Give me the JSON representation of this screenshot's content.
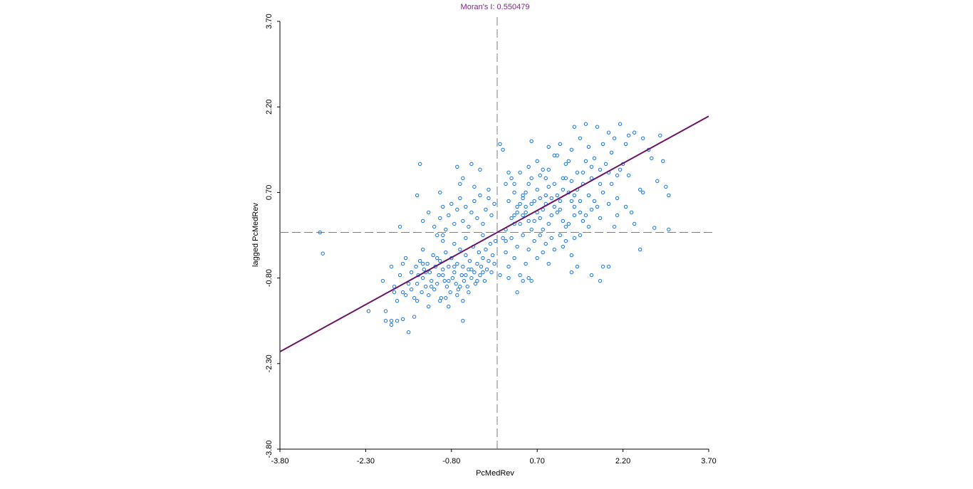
{
  "chart_data": {
    "type": "scatter",
    "title": "Moran's I: 0.550479",
    "xlabel": "PcMedRev",
    "ylabel": "lagged PcMedRev",
    "xlim": [
      -3.8,
      3.7
    ],
    "ylim": [
      -3.8,
      3.7
    ],
    "x_ticks": [
      "-3.80",
      "-2.30",
      "-0.80",
      "0.70",
      "2.20",
      "3.70"
    ],
    "y_ticks": [
      "-3.80",
      "-2.30",
      "-0.80",
      "0.70",
      "2.20",
      "3.70"
    ],
    "x_tick_values": [
      -3.8,
      -2.3,
      -0.8,
      0.7,
      2.2,
      3.7
    ],
    "y_tick_values": [
      -3.8,
      -2.3,
      -0.8,
      0.7,
      2.2,
      3.7
    ],
    "reference_lines": {
      "x": 0.0,
      "y": 0.0
    },
    "regression_line": {
      "slope": 0.550479,
      "intercept": 0.0
    },
    "grid": false,
    "colors": {
      "title": "#7B2A82",
      "points": "#1f6fd6",
      "regression": "#6a1465",
      "reference": "#808080",
      "axis": "#000000"
    },
    "points": [
      [
        -3.1,
        0.0
      ],
      [
        -3.05,
        -0.37
      ],
      [
        -2.25,
        -1.38
      ],
      [
        -1.95,
        -1.38
      ],
      [
        -1.95,
        -1.55
      ],
      [
        -1.85,
        -1.55
      ],
      [
        -1.85,
        -1.62
      ],
      [
        -1.75,
        -1.55
      ],
      [
        -1.8,
        -1.05
      ],
      [
        -1.65,
        -1.05
      ],
      [
        -1.55,
        -1.75
      ],
      [
        -1.65,
        -1.52
      ],
      [
        -1.45,
        -1.48
      ],
      [
        -2.0,
        -0.85
      ],
      [
        -1.85,
        -0.6
      ],
      [
        -1.8,
        -0.95
      ],
      [
        -1.75,
        -1.2
      ],
      [
        -1.7,
        -0.75
      ],
      [
        -1.65,
        -0.55
      ],
      [
        -1.6,
        -0.45
      ],
      [
        -1.6,
        -1.1
      ],
      [
        -1.55,
        -0.9
      ],
      [
        -1.5,
        -0.7
      ],
      [
        -1.5,
        -1.0
      ],
      [
        -1.45,
        -1.15
      ],
      [
        -1.42,
        -0.6
      ],
      [
        -1.4,
        -0.9
      ],
      [
        -1.38,
        -0.75
      ],
      [
        -1.35,
        -0.5
      ],
      [
        -1.32,
        -1.05
      ],
      [
        -1.3,
        -0.8
      ],
      [
        -1.28,
        -0.65
      ],
      [
        -1.25,
        -0.95
      ],
      [
        -1.22,
        -0.55
      ],
      [
        -1.2,
        -1.1
      ],
      [
        -1.18,
        -0.7
      ],
      [
        -1.15,
        -0.85
      ],
      [
        -1.12,
        -0.4
      ],
      [
        -1.1,
        -1.0
      ],
      [
        -1.08,
        -0.6
      ],
      [
        -1.05,
        -0.9
      ],
      [
        -1.02,
        -0.75
      ],
      [
        -1.0,
        -0.5
      ],
      [
        -0.98,
        -1.15
      ],
      [
        -0.95,
        -0.65
      ],
      [
        -0.92,
        -0.85
      ],
      [
        -0.9,
        -0.35
      ],
      [
        -0.88,
        -0.95
      ],
      [
        -0.85,
        -0.6
      ],
      [
        -0.82,
        -1.05
      ],
      [
        -0.8,
        -0.45
      ],
      [
        -0.78,
        -0.8
      ],
      [
        -0.75,
        -0.7
      ],
      [
        -0.72,
        -0.9
      ],
      [
        -0.7,
        -0.55
      ],
      [
        -0.68,
        -1.0
      ],
      [
        -0.65,
        -0.3
      ],
      [
        -0.62,
        -0.75
      ],
      [
        -0.6,
        -0.6
      ],
      [
        -0.58,
        -0.85
      ],
      [
        -0.55,
        -0.4
      ],
      [
        -0.52,
        -0.95
      ],
      [
        -0.5,
        -0.65
      ],
      [
        -0.48,
        -0.5
      ],
      [
        -0.45,
        -0.8
      ],
      [
        -0.42,
        -0.25
      ],
      [
        -0.4,
        -0.7
      ],
      [
        -0.38,
        -0.9
      ],
      [
        -0.35,
        -0.55
      ],
      [
        -0.32,
        -0.35
      ],
      [
        -0.3,
        -0.75
      ],
      [
        -0.28,
        -0.6
      ],
      [
        -0.25,
        -0.45
      ],
      [
        -0.22,
        -0.85
      ],
      [
        -0.2,
        -0.3
      ],
      [
        -0.18,
        -0.65
      ],
      [
        -0.15,
        -0.5
      ],
      [
        -0.12,
        -0.2
      ],
      [
        -0.1,
        -0.7
      ],
      [
        -0.08,
        -0.4
      ],
      [
        -0.05,
        -0.55
      ],
      [
        -0.03,
        -0.15
      ],
      [
        -1.3,
        -0.55
      ],
      [
        -1.25,
        -0.7
      ],
      [
        -1.15,
        -0.95
      ],
      [
        -1.05,
        -0.45
      ],
      [
        -0.95,
        -0.75
      ],
      [
        -0.85,
        -0.85
      ],
      [
        -0.75,
        -0.6
      ],
      [
        -0.65,
        -0.95
      ],
      [
        -0.55,
        -0.75
      ],
      [
        -0.45,
        -0.65
      ],
      [
        -0.35,
        -0.85
      ],
      [
        -0.25,
        -0.7
      ],
      [
        -1.4,
        -1.2
      ],
      [
        -1.2,
        -1.3
      ],
      [
        -1.0,
        -1.2
      ],
      [
        -0.9,
        -1.15
      ],
      [
        -0.7,
        -1.1
      ],
      [
        -0.6,
        -1.2
      ],
      [
        -0.5,
        -1.05
      ],
      [
        -0.85,
        -1.3
      ],
      [
        -0.6,
        -1.55
      ],
      [
        -0.75,
        -0.2
      ],
      [
        -0.95,
        -0.15
      ],
      [
        -1.05,
        -0.05
      ],
      [
        -1.3,
        -0.3
      ],
      [
        -1.7,
        0.1
      ],
      [
        -1.3,
        0.2
      ],
      [
        -1.2,
        0.35
      ],
      [
        -1.1,
        0.1
      ],
      [
        -1.0,
        0.25
      ],
      [
        -0.95,
        0.45
      ],
      [
        -0.9,
        0.05
      ],
      [
        -0.85,
        0.3
      ],
      [
        -0.8,
        0.5
      ],
      [
        -0.75,
        0.15
      ],
      [
        -0.7,
        0.4
      ],
      [
        -0.65,
        0.6
      ],
      [
        -0.6,
        0.2
      ],
      [
        -0.55,
        0.45
      ],
      [
        -0.5,
        0.1
      ],
      [
        -0.45,
        0.35
      ],
      [
        -0.4,
        0.55
      ],
      [
        -0.35,
        0.25
      ],
      [
        -0.3,
        0.65
      ],
      [
        -0.25,
        0.15
      ],
      [
        -0.2,
        0.4
      ],
      [
        -0.15,
        0.6
      ],
      [
        -0.1,
        0.3
      ],
      [
        -0.05,
        0.5
      ],
      [
        -1.0,
        0.7
      ],
      [
        -0.6,
        0.95
      ],
      [
        -0.4,
        0.8
      ],
      [
        -0.65,
        0.85
      ],
      [
        -1.4,
        0.65
      ],
      [
        -1.35,
        1.2
      ],
      [
        -0.45,
        1.2
      ],
      [
        -0.3,
        1.1
      ],
      [
        -0.7,
        1.15
      ],
      [
        -0.15,
        0.75
      ],
      [
        -0.95,
        -0.05
      ],
      [
        -0.55,
        -0.1
      ],
      [
        -0.25,
        -0.05
      ],
      [
        0.05,
        1.55
      ],
      [
        0.1,
        1.45
      ],
      [
        0.15,
        0.85
      ],
      [
        0.2,
        0.55
      ],
      [
        0.25,
        0.25
      ],
      [
        0.3,
        0.7
      ],
      [
        0.35,
        0.45
      ],
      [
        0.4,
        0.15
      ],
      [
        0.45,
        0.6
      ],
      [
        0.5,
        0.35
      ],
      [
        0.55,
        0.85
      ],
      [
        0.6,
        0.5
      ],
      [
        0.65,
        0.2
      ],
      [
        0.7,
        0.75
      ],
      [
        0.75,
        1.0
      ],
      [
        0.8,
        0.4
      ],
      [
        0.85,
        0.65
      ],
      [
        0.9,
        1.1
      ],
      [
        0.95,
        0.3
      ],
      [
        1.0,
        0.85
      ],
      [
        1.05,
        1.35
      ],
      [
        1.1,
        0.55
      ],
      [
        1.15,
        0.95
      ],
      [
        1.2,
        1.2
      ],
      [
        1.25,
        0.7
      ],
      [
        1.3,
        1.45
      ],
      [
        1.35,
        0.45
      ],
      [
        1.4,
        1.05
      ],
      [
        1.45,
        1.65
      ],
      [
        1.5,
        0.85
      ],
      [
        1.55,
        1.25
      ],
      [
        1.6,
        1.5
      ],
      [
        1.65,
        0.95
      ],
      [
        1.7,
        1.3
      ],
      [
        1.75,
        1.85
      ],
      [
        1.8,
        1.1
      ],
      [
        1.85,
        1.55
      ],
      [
        1.9,
        1.2
      ],
      [
        1.95,
        1.75
      ],
      [
        2.0,
        1.4
      ],
      [
        2.05,
        1.65
      ],
      [
        2.1,
        1.0
      ],
      [
        2.15,
        1.9
      ],
      [
        2.2,
        1.2
      ],
      [
        2.25,
        1.55
      ],
      [
        2.3,
        1.7
      ],
      [
        2.4,
        1.75
      ],
      [
        2.55,
        1.65
      ],
      [
        2.65,
        1.45
      ],
      [
        2.7,
        1.3
      ],
      [
        2.8,
        0.9
      ],
      [
        2.85,
        1.7
      ],
      [
        2.9,
        1.25
      ],
      [
        2.95,
        0.8
      ],
      [
        3.0,
        0.65
      ],
      [
        2.5,
        0.75
      ],
      [
        2.55,
        0.7
      ],
      [
        1.55,
        1.9
      ],
      [
        1.35,
        1.85
      ],
      [
        1.1,
        1.55
      ],
      [
        0.6,
        1.6
      ],
      [
        0.9,
        1.5
      ],
      [
        1.25,
        1.25
      ],
      [
        0.1,
        -0.1
      ],
      [
        0.15,
        -0.35
      ],
      [
        0.2,
        -0.6
      ],
      [
        0.25,
        -0.1
      ],
      [
        0.3,
        -0.45
      ],
      [
        0.35,
        -0.25
      ],
      [
        0.4,
        -0.75
      ],
      [
        0.45,
        -0.05
      ],
      [
        0.5,
        -0.55
      ],
      [
        0.55,
        -0.3
      ],
      [
        0.6,
        -0.85
      ],
      [
        0.65,
        -0.15
      ],
      [
        0.7,
        -0.45
      ],
      [
        0.75,
        -0.05
      ],
      [
        0.8,
        -0.35
      ],
      [
        0.85,
        -0.2
      ],
      [
        0.9,
        -0.55
      ],
      [
        0.95,
        -0.1
      ],
      [
        1.0,
        -0.3
      ],
      [
        1.1,
        -0.05
      ],
      [
        1.15,
        -0.25
      ],
      [
        1.2,
        -0.15
      ],
      [
        1.3,
        -0.4
      ],
      [
        1.35,
        -0.1
      ],
      [
        1.45,
        -0.05
      ],
      [
        0.35,
        -1.05
      ],
      [
        0.45,
        -0.85
      ],
      [
        0.2,
        -0.8
      ],
      [
        0.05,
        -0.75
      ],
      [
        0.15,
        -0.15
      ],
      [
        1.4,
        -0.6
      ],
      [
        1.85,
        -0.6
      ],
      [
        1.65,
        -0.75
      ],
      [
        1.95,
        -0.6
      ],
      [
        1.3,
        -0.7
      ],
      [
        1.8,
        -0.85
      ],
      [
        0.55,
        -0.8
      ],
      [
        0.15,
        0.05
      ],
      [
        0.3,
        0.15
      ],
      [
        0.45,
        0.3
      ],
      [
        0.6,
        0.05
      ],
      [
        0.75,
        0.25
      ],
      [
        0.9,
        0.15
      ],
      [
        1.05,
        0.35
      ],
      [
        1.2,
        0.1
      ],
      [
        1.35,
        0.3
      ],
      [
        1.5,
        0.2
      ],
      [
        1.65,
        0.4
      ],
      [
        1.8,
        0.25
      ],
      [
        1.95,
        0.5
      ],
      [
        2.1,
        0.3
      ],
      [
        2.25,
        0.45
      ],
      [
        2.4,
        0.15
      ],
      [
        2.1,
        0.6
      ],
      [
        2.35,
        0.35
      ],
      [
        3.0,
        0.05
      ],
      [
        2.5,
        -0.3
      ],
      [
        2.75,
        0.08
      ],
      [
        2.05,
        0.1
      ],
      [
        0.25,
        0.95
      ],
      [
        0.4,
        1.05
      ],
      [
        0.55,
        1.15
      ],
      [
        0.7,
        1.25
      ],
      [
        0.85,
        0.95
      ],
      [
        1.0,
        1.35
      ],
      [
        1.15,
        0.75
      ],
      [
        1.3,
        0.9
      ],
      [
        1.45,
        0.55
      ],
      [
        1.6,
        0.65
      ],
      [
        1.75,
        0.45
      ],
      [
        0.2,
        1.05
      ],
      [
        0.35,
        0.35
      ],
      [
        0.5,
        0.45
      ],
      [
        0.65,
        0.55
      ],
      [
        0.8,
        0.05
      ],
      [
        0.95,
        0.6
      ],
      [
        1.1,
        0.4
      ],
      [
        1.25,
        0.15
      ],
      [
        1.4,
        0.75
      ],
      [
        1.55,
        0.3
      ],
      [
        1.7,
        0.55
      ],
      [
        1.85,
        0.7
      ],
      [
        2.0,
        0.85
      ],
      [
        0.3,
        0.85
      ],
      [
        0.45,
        0.65
      ],
      [
        0.6,
        0.95
      ],
      [
        0.75,
        0.6
      ],
      [
        0.9,
        0.8
      ],
      [
        1.05,
        0.65
      ],
      [
        1.2,
        0.95
      ],
      [
        1.35,
        0.65
      ],
      [
        1.5,
        1.05
      ],
      [
        1.65,
        1.15
      ],
      [
        1.8,
        0.85
      ],
      [
        1.95,
        1.05
      ],
      [
        2.15,
        1.1
      ],
      [
        2.3,
        1.0
      ],
      [
        0.4,
        0.5
      ],
      [
        0.55,
        0.2
      ],
      [
        0.7,
        0.35
      ],
      [
        0.85,
        0.5
      ],
      [
        1.0,
        0.45
      ],
      [
        1.15,
        0.2
      ],
      [
        1.3,
        0.55
      ],
      [
        1.45,
        0.35
      ],
      [
        1.6,
        0.1
      ],
      [
        0.3,
        0.3
      ],
      [
        0.5,
        0.7
      ],
      [
        0.8,
        1.1
      ]
    ]
  }
}
